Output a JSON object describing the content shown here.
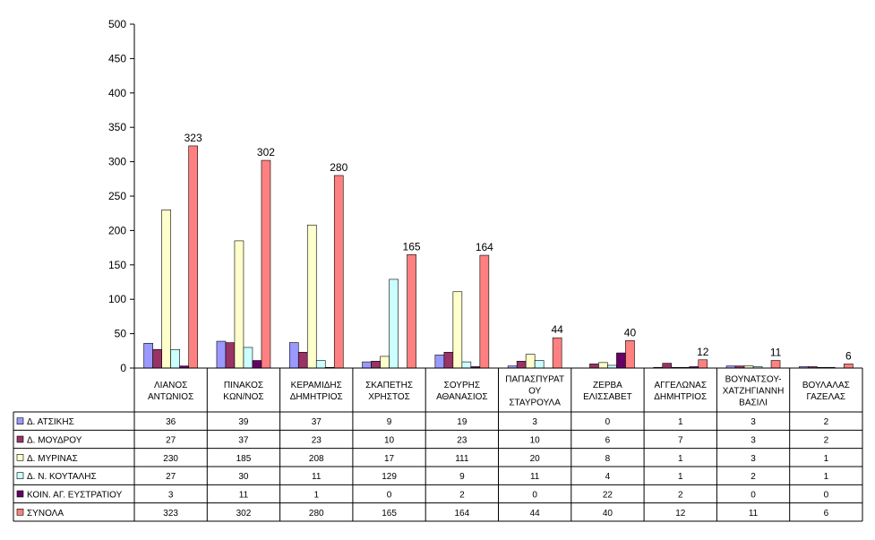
{
  "chart_data": {
    "type": "bar",
    "title": "",
    "xlabel": "",
    "ylabel": "",
    "ylim": [
      0,
      500
    ],
    "yticks": [
      0,
      50,
      100,
      150,
      200,
      250,
      300,
      350,
      400,
      450,
      500
    ],
    "grid": false,
    "legend": "data-table-left",
    "categories": [
      [
        "ΛΙΑΝΟΣ",
        "ΑΝΤΩΝΙΟΣ"
      ],
      [
        "ΠΙΝΑΚΟΣ",
        "ΚΩΝ/ΝΟΣ"
      ],
      [
        "ΚΕΡΑΜΙΔΗΣ",
        "ΔΗΜΗΤΡΙΟΣ"
      ],
      [
        "ΣΚΑΠΕΤΗΣ",
        "ΧΡΗΣΤΟΣ"
      ],
      [
        "ΣΟΥΡΗΣ",
        "ΑΘΑΝΑΣΙΟΣ"
      ],
      [
        "ΠΑΠΑΣΠΥΡΑΤ",
        "ΟΥ",
        "ΣΤΑΥΡΟΥΛΑ"
      ],
      [
        "ΖΕΡΒΑ",
        "ΕΛΙΣΣΑΒΕΤ"
      ],
      [
        "ΑΓΓΕΛΩΝΑΣ",
        "ΔΗΜΗΤΡΙΟΣ"
      ],
      [
        "ΒΟΥΝΑΤΣΟΥ-",
        "ΧΑΤΖΗΓΙΑΝΝΗ",
        "ΒΑΣΙΛΙ"
      ],
      [
        "ΒΟΥΛΑΛΑΣ",
        "ΓΑΖΕΛΑΣ"
      ]
    ],
    "series": [
      {
        "name": "Δ. ΑΤΣΙΚΗΣ",
        "color": "#9999ff",
        "values": [
          36,
          39,
          37,
          9,
          19,
          3,
          0,
          1,
          3,
          2
        ]
      },
      {
        "name": "Δ. ΜΟΥΔΡΟΥ",
        "color": "#993366",
        "values": [
          27,
          37,
          23,
          10,
          23,
          10,
          6,
          7,
          3,
          2
        ]
      },
      {
        "name": "Δ. ΜΥΡΙΝΑΣ",
        "color": "#ffffcc",
        "values": [
          230,
          185,
          208,
          17,
          111,
          20,
          8,
          1,
          3,
          1
        ]
      },
      {
        "name": "Δ. Ν. ΚΟΥΤΑΛΗΣ",
        "color": "#ccffff",
        "values": [
          27,
          30,
          11,
          129,
          9,
          11,
          4,
          1,
          2,
          1
        ]
      },
      {
        "name": "ΚΟΙΝ. ΑΓ. ΕΥΣΤΡΑΤΙΟΥ",
        "color": "#660066",
        "values": [
          3,
          11,
          1,
          0,
          2,
          0,
          22,
          2,
          0,
          0
        ]
      },
      {
        "name": "ΣΥΝΟΛΑ",
        "color": "#ff8080",
        "values": [
          323,
          302,
          280,
          165,
          164,
          44,
          40,
          12,
          11,
          6
        ],
        "show_labels": true
      }
    ]
  }
}
